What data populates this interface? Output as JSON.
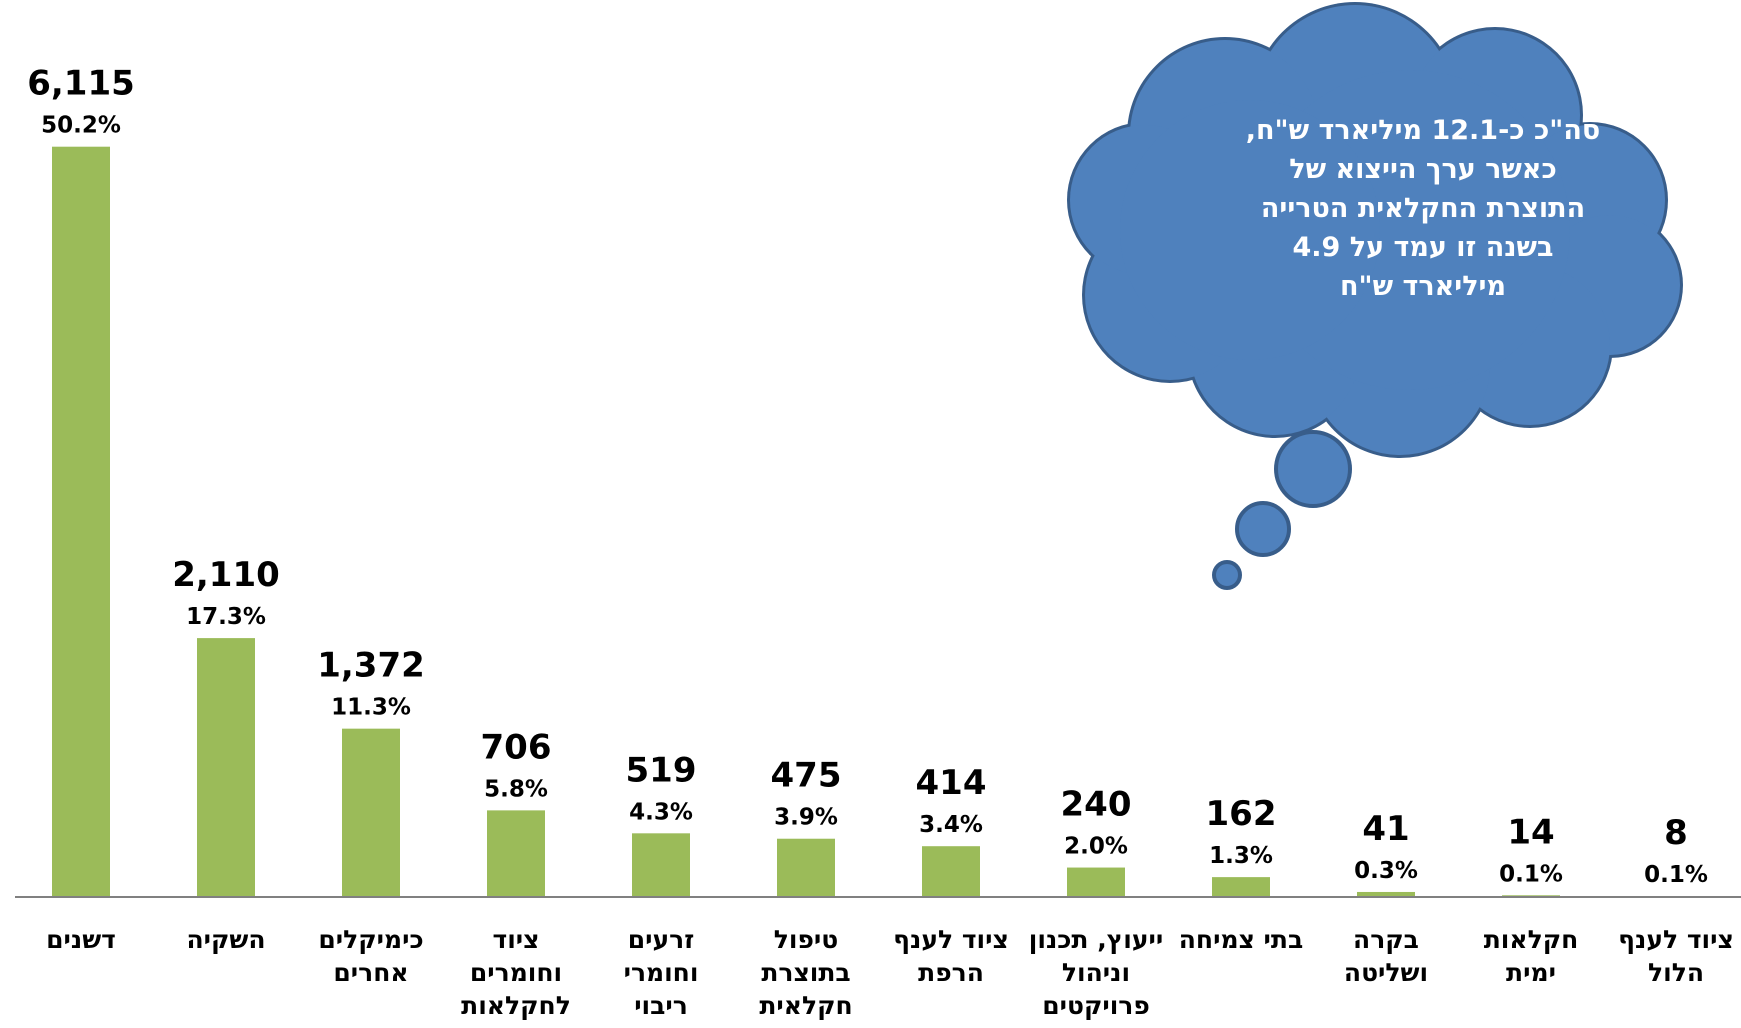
{
  "chart_data": {
    "type": "bar",
    "categories": [
      [
        "דשנים"
      ],
      [
        "השקיה"
      ],
      [
        "כימיקלים",
        "אחרים"
      ],
      [
        "ציוד",
        "וחומרים",
        "לחקלאות"
      ],
      [
        "זרעים",
        "וחומרי",
        "ריבוי"
      ],
      [
        "טיפול",
        "בתוצרת",
        "חקלאית"
      ],
      [
        "ציוד לענף",
        "הרפת"
      ],
      [
        "ייעוץ, תכנון",
        "וניהול",
        "פרויקטים"
      ],
      [
        "בתי צמיחה"
      ],
      [
        "בקרה",
        "ושליטה"
      ],
      [
        "חקלאות",
        "ימית"
      ],
      [
        "ציוד לענף",
        "הלול"
      ]
    ],
    "values": [
      6115,
      2110,
      1372,
      706,
      519,
      475,
      414,
      240,
      162,
      41,
      14,
      8
    ],
    "value_labels": [
      "6,115",
      "2,110",
      "1,372",
      "706",
      "519",
      "475",
      "414",
      "240",
      "162",
      "41",
      "14",
      "8"
    ],
    "percent_labels": [
      "50.2%",
      "17.3%",
      "11.3%",
      "5.8%",
      "4.3%",
      "3.9%",
      "3.4%",
      "2.0%",
      "1.3%",
      "0.3%",
      "0.1%",
      "0.1%"
    ],
    "ylim": [
      0,
      6300
    ],
    "bar_color": "#9BBB59",
    "axis_color": "#808080",
    "title": "",
    "xlabel": "",
    "ylabel": "",
    "grid": false,
    "legend": "none"
  },
  "callout": {
    "lines": [
      "סה\"כ כ-12.1 מיליארד ש\"ח,",
      "כאשר ערך הייצוא של",
      "התוצרת החקלאית הטרייה",
      "בשנה זו עמד על 4.9",
      "מיליארד ש\"ח"
    ],
    "fill": "#4F81BD",
    "stroke": "#385D8A",
    "text_color": "#FFFFFF"
  }
}
